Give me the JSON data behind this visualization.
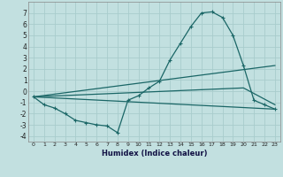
{
  "title": "",
  "xlabel": "Humidex (Indice chaleur)",
  "background_color": "#c2e0e0",
  "grid_color": "#a8cccc",
  "line_color": "#1a6666",
  "xlim": [
    -0.5,
    23.5
  ],
  "ylim": [
    -4.5,
    8.0
  ],
  "xticks": [
    0,
    1,
    2,
    3,
    4,
    5,
    6,
    7,
    8,
    9,
    10,
    11,
    12,
    13,
    14,
    15,
    16,
    17,
    18,
    19,
    20,
    21,
    22,
    23
  ],
  "yticks": [
    -4,
    -3,
    -2,
    -1,
    0,
    1,
    2,
    3,
    4,
    5,
    6,
    7
  ],
  "series": {
    "main": {
      "x": [
        0,
        1,
        2,
        3,
        4,
        5,
        6,
        7,
        8,
        9,
        10,
        11,
        12,
        13,
        14,
        15,
        16,
        17,
        18,
        19,
        20,
        21,
        22,
        23
      ],
      "y": [
        -0.5,
        -1.2,
        -1.5,
        -2.0,
        -2.6,
        -2.8,
        -3.0,
        -3.1,
        -3.7,
        -0.8,
        -0.4,
        0.3,
        0.9,
        2.8,
        4.3,
        5.8,
        7.0,
        7.1,
        6.6,
        5.0,
        2.3,
        -0.8,
        -1.2,
        -1.6
      ]
    },
    "line_flat": {
      "x": [
        0,
        23
      ],
      "y": [
        -0.5,
        -1.6
      ]
    },
    "line_mid": {
      "x": [
        0,
        20,
        23
      ],
      "y": [
        -0.5,
        0.3,
        -1.2
      ]
    },
    "line_upper": {
      "x": [
        0,
        23
      ],
      "y": [
        -0.5,
        2.3
      ]
    }
  }
}
